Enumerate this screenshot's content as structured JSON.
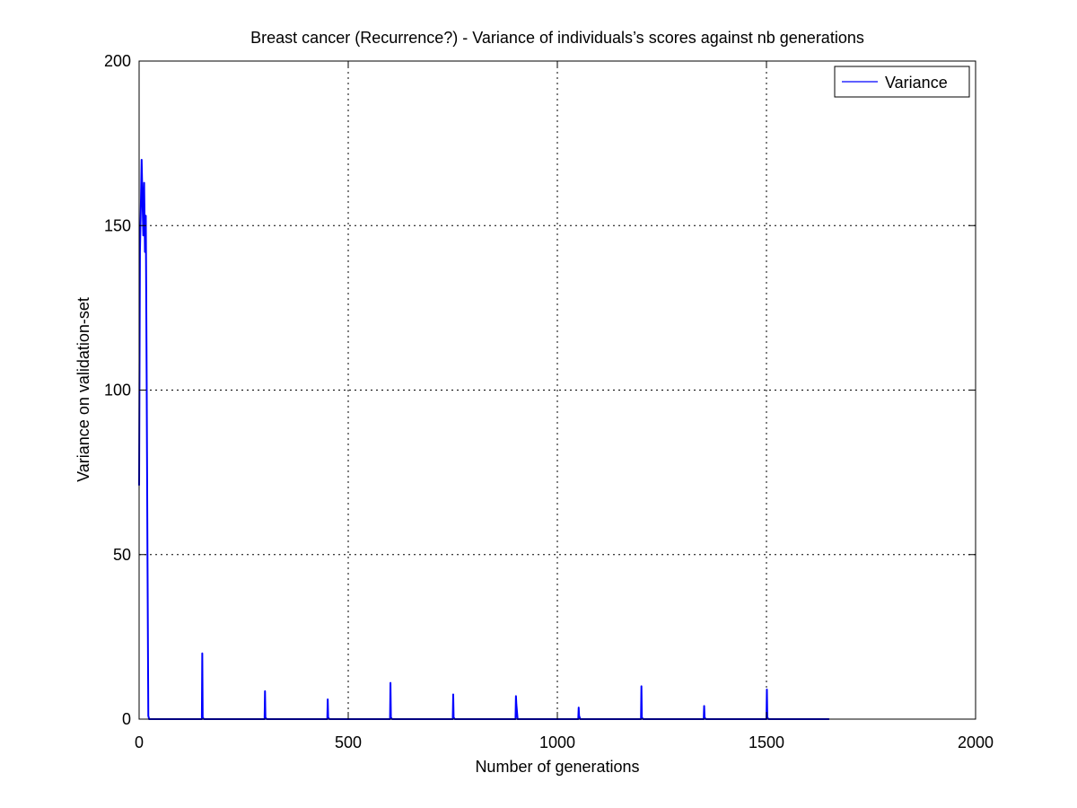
{
  "chart_data": {
    "type": "line",
    "title": "Breast cancer (Recurrence?) - Variance of individuals’s scores against nb generations",
    "xlabel": "Number of generations",
    "ylabel": "Variance on validation-set",
    "xlim": [
      0,
      2000
    ],
    "ylim": [
      0,
      200
    ],
    "xticks": [
      0,
      500,
      1000,
      1500,
      2000
    ],
    "yticks": [
      0,
      50,
      100,
      150,
      200
    ],
    "grid": true,
    "legend_position": "top-right",
    "series": [
      {
        "name": "Variance",
        "color": "#0000ff",
        "x": [
          0,
          2,
          4,
          6,
          8,
          10,
          12,
          14,
          16,
          18,
          20,
          22,
          24,
          150,
          151,
          152,
          155,
          300,
          301,
          302,
          305,
          450,
          451,
          452,
          455,
          600,
          601,
          602,
          605,
          750,
          751,
          752,
          755,
          900,
          901,
          902,
          905,
          1050,
          1051,
          1052,
          1055,
          1200,
          1201,
          1202,
          1205,
          1350,
          1351,
          1352,
          1355,
          1500,
          1501,
          1502,
          1505,
          1650
        ],
        "y": [
          71,
          142,
          155,
          170,
          158,
          147,
          163,
          142,
          153,
          105,
          50,
          1,
          0,
          0,
          20,
          0.5,
          0,
          0,
          8.5,
          0.5,
          0,
          0,
          6,
          0.5,
          0,
          0,
          11,
          0.5,
          0,
          0,
          7.5,
          0.5,
          0,
          0,
          7,
          4.5,
          0,
          0,
          3.5,
          1,
          0,
          0,
          10,
          0.5,
          0,
          0,
          4,
          0.5,
          0,
          0,
          9,
          0.5,
          0,
          0
        ]
      }
    ]
  }
}
